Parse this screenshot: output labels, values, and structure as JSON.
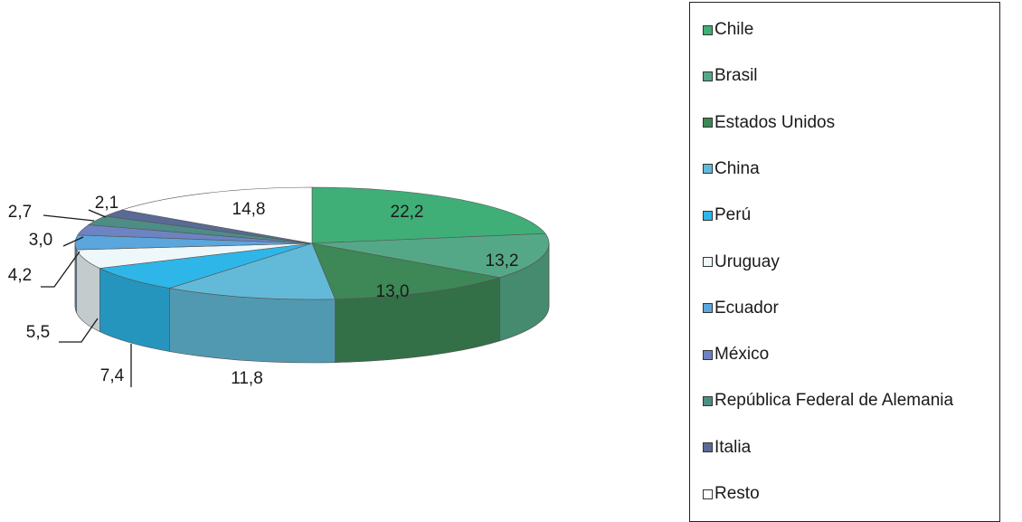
{
  "chart_data": {
    "type": "pie",
    "title": "",
    "slices": [
      {
        "label": "Chile",
        "value": 22.2,
        "value_label": "22,2",
        "color": "#3fae77"
      },
      {
        "label": "Brasil",
        "value": 13.2,
        "value_label": "13,2",
        "color": "#55a887"
      },
      {
        "label": "Estados Unidos",
        "value": 13.0,
        "value_label": "13,0",
        "color": "#3e8756"
      },
      {
        "label": "China",
        "value": 11.8,
        "value_label": "11,8",
        "color": "#63bad8"
      },
      {
        "label": "Perú",
        "value": 7.4,
        "value_label": "7,4",
        "color": "#2eb6e8"
      },
      {
        "label": "Uruguay",
        "value": 5.5,
        "value_label": "5,5",
        "color": "#eef8fa"
      },
      {
        "label": "Ecuador",
        "value": 4.2,
        "value_label": "4,2",
        "color": "#5ba6dc"
      },
      {
        "label": "México",
        "value": 3.0,
        "value_label": "3,0",
        "color": "#6d83c2"
      },
      {
        "label": "República Federal de Alemania",
        "value": 2.7,
        "value_label": "2,7",
        "color": "#4d8d86"
      },
      {
        "label": "Italia",
        "value": 2.1,
        "value_label": "2,1",
        "color": "#5a6a96"
      },
      {
        "label": "Resto",
        "value": 14.8,
        "value_label": "14,8",
        "color": "#ffffff"
      }
    ],
    "legend_position": "right"
  }
}
